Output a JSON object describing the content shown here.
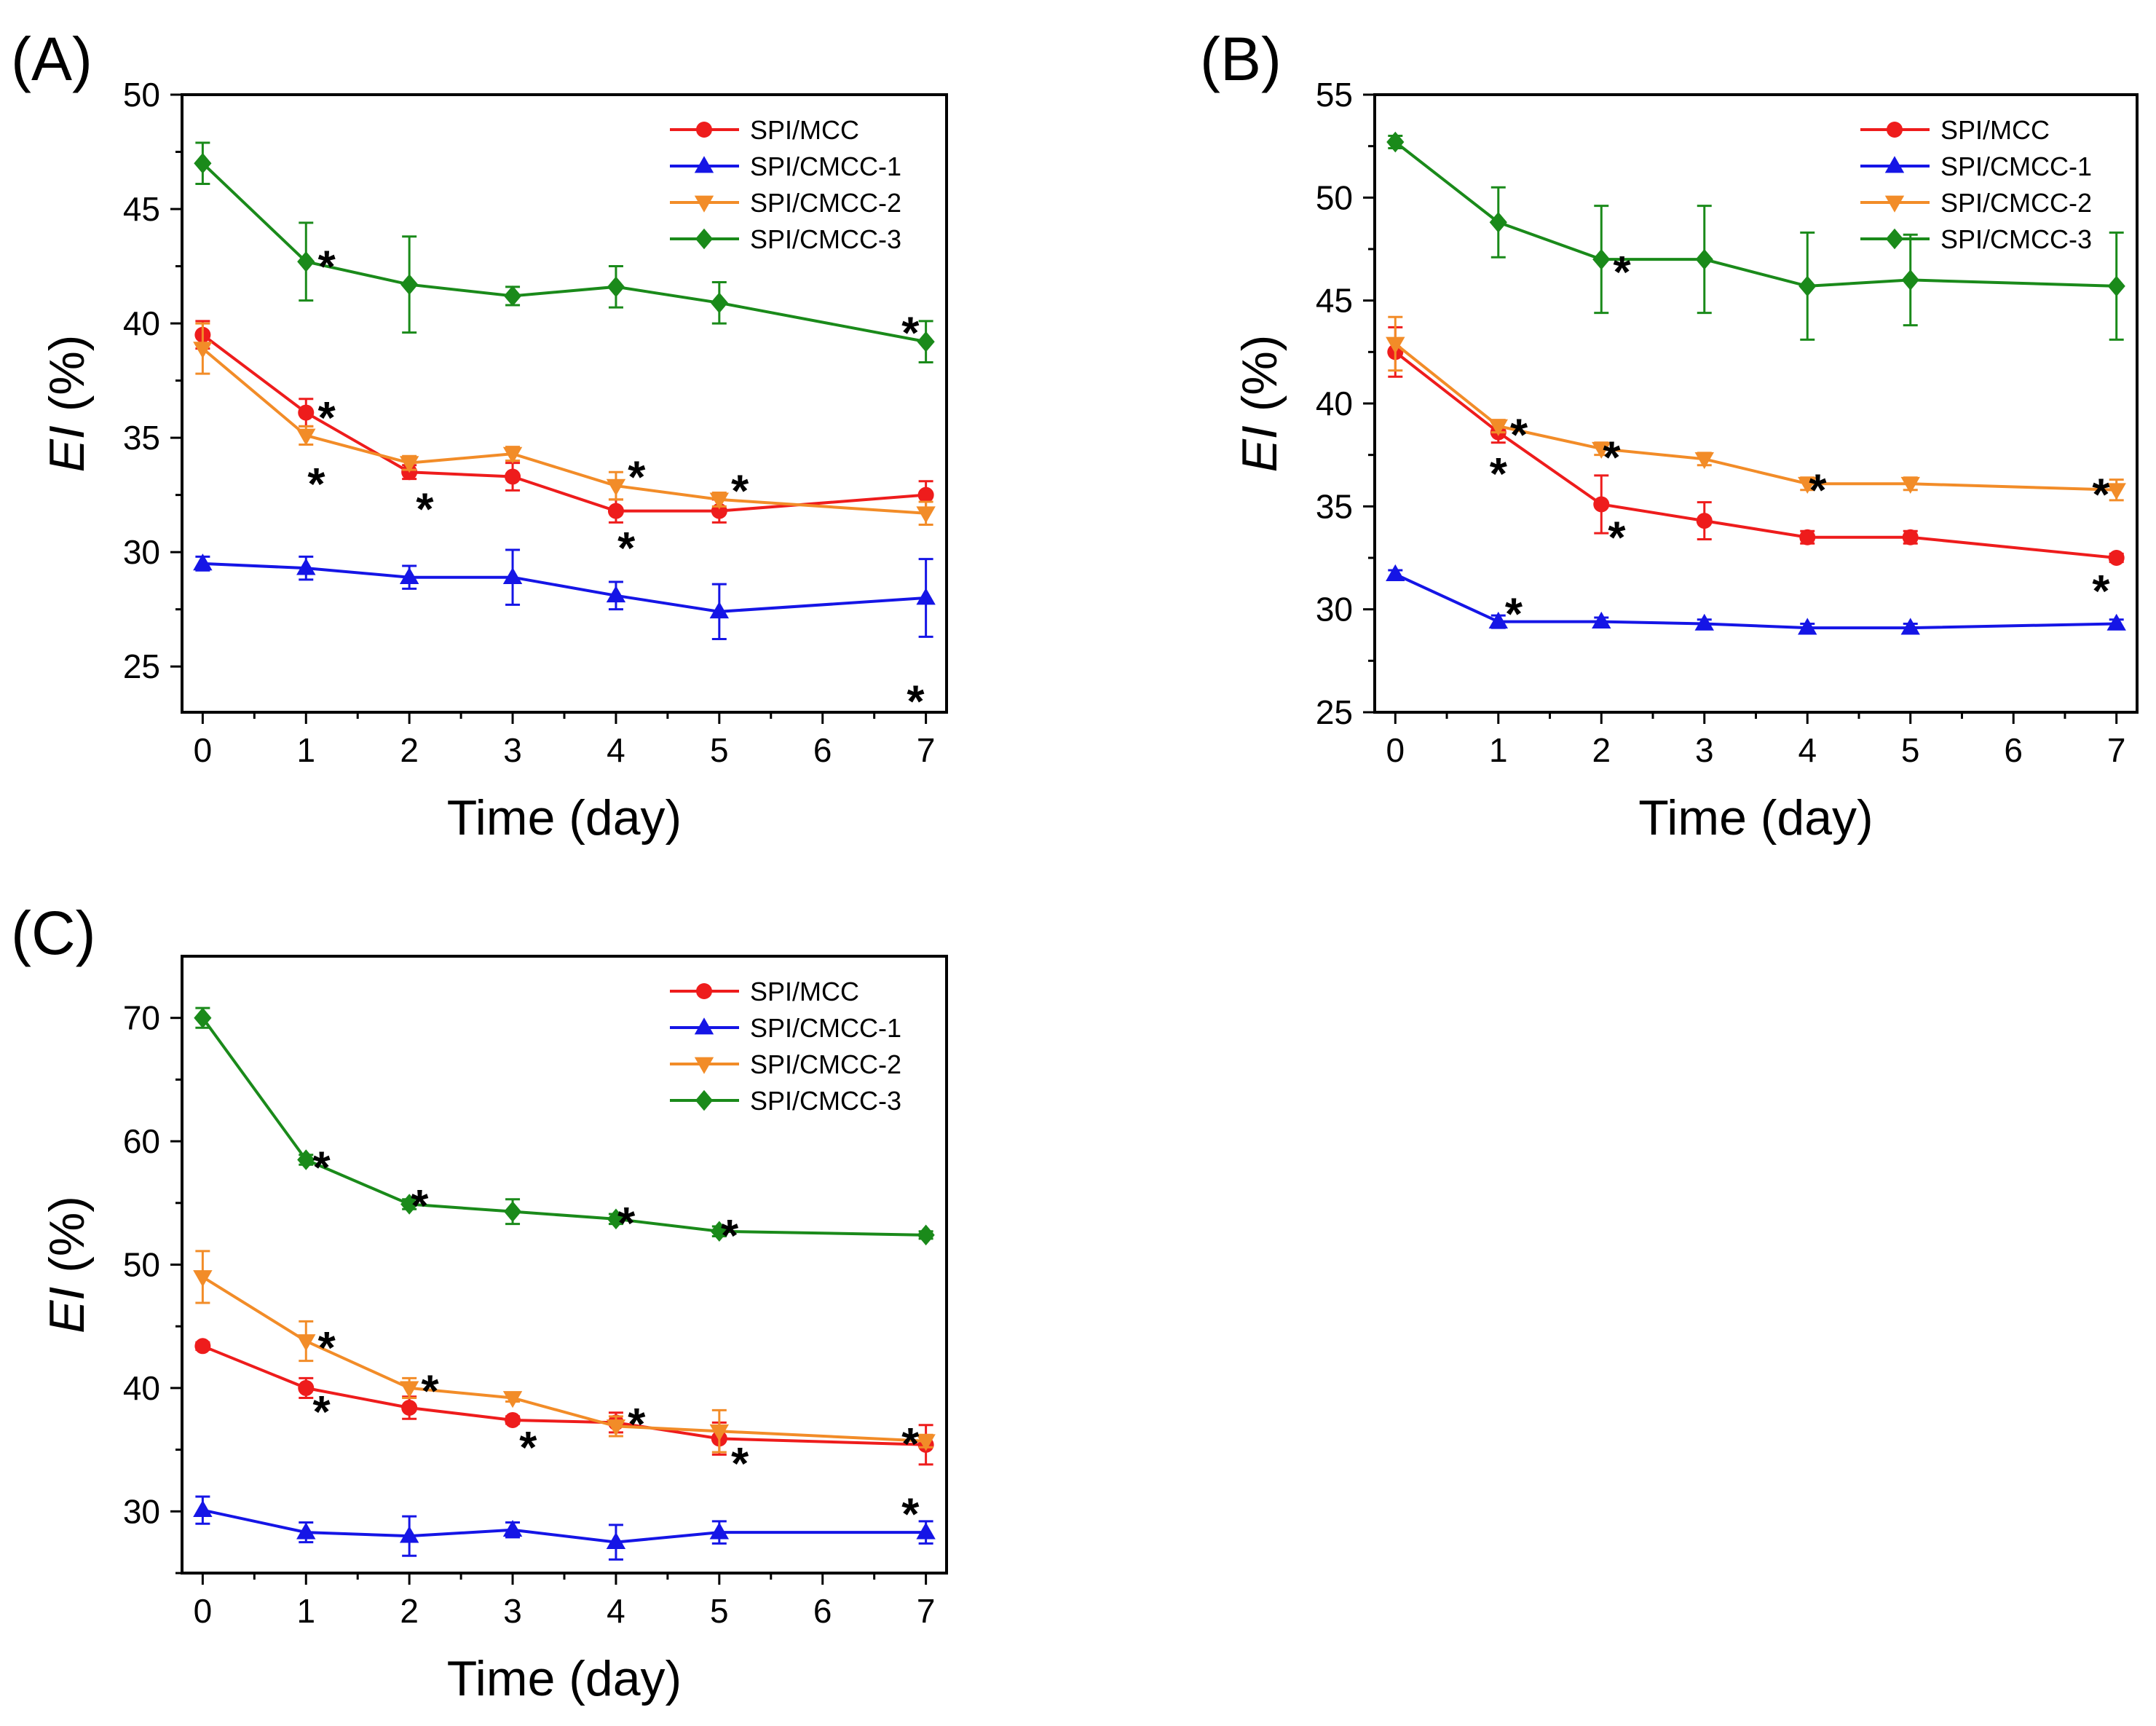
{
  "chart_data": [
    {
      "type": "line",
      "panel_label": "(A)",
      "xlabel": "Time (day)",
      "ylabel_italic": "EI",
      "ylabel_rest": " (%)",
      "xlim": [
        -0.2,
        7.2
      ],
      "ylim": [
        23,
        50
      ],
      "xticks": [
        0,
        1,
        2,
        3,
        4,
        5,
        6,
        7
      ],
      "yticks": [
        25,
        30,
        35,
        40,
        45,
        50
      ],
      "legend_position": "top-right",
      "series": [
        {
          "name": "SPI/MCC",
          "color": "#ee1c1c",
          "marker": "circle",
          "x": [
            0,
            1,
            2,
            3,
            4,
            5,
            7
          ],
          "y": [
            39.5,
            36.1,
            33.5,
            33.3,
            31.8,
            31.8,
            32.5
          ],
          "err": [
            0.6,
            0.6,
            0.3,
            0.6,
            0.5,
            0.5,
            0.6
          ]
        },
        {
          "name": "SPI/CMCC-1",
          "color": "#1515e6",
          "marker": "triangle-up",
          "x": [
            0,
            1,
            2,
            3,
            4,
            5,
            7
          ],
          "y": [
            29.5,
            29.3,
            28.9,
            28.9,
            28.1,
            27.4,
            28.0
          ],
          "err": [
            0.3,
            0.5,
            0.5,
            1.2,
            0.6,
            1.2,
            1.7
          ]
        },
        {
          "name": "SPI/CMCC-2",
          "color": "#f28c28",
          "marker": "triangle-down",
          "x": [
            0,
            1,
            2,
            3,
            4,
            5,
            7
          ],
          "y": [
            38.9,
            35.1,
            33.9,
            34.3,
            32.9,
            32.3,
            31.7
          ],
          "err": [
            1.1,
            0.4,
            0.3,
            0.3,
            0.6,
            0.3,
            0.5
          ]
        },
        {
          "name": "SPI/CMCC-3",
          "color": "#1a8a1a",
          "marker": "diamond",
          "x": [
            0,
            1,
            2,
            3,
            4,
            5,
            7
          ],
          "y": [
            47.0,
            42.7,
            41.7,
            41.2,
            41.6,
            40.9,
            39.2
          ],
          "err": [
            0.9,
            1.7,
            2.1,
            0.4,
            0.9,
            0.9,
            0.9
          ]
        }
      ],
      "annotations": [
        {
          "text": "*",
          "x": 1.2,
          "y": 42.5,
          "color": "#1a8a1a"
        },
        {
          "text": "*",
          "x": 6.85,
          "y": 39.6,
          "color": "#1a8a1a"
        },
        {
          "text": "*",
          "x": 1.2,
          "y": 35.9,
          "color": "#ee1c1c"
        },
        {
          "text": "*",
          "x": 2.15,
          "y": 31.9,
          "color": "#ee1c1c"
        },
        {
          "text": "*",
          "x": 4.1,
          "y": 30.2,
          "color": "#ee1c1c"
        },
        {
          "text": "*",
          "x": 1.1,
          "y": 33.0,
          "color": "#f28c28"
        },
        {
          "text": "*",
          "x": 4.2,
          "y": 33.3,
          "color": "#f28c28"
        },
        {
          "text": "*",
          "x": 5.2,
          "y": 32.7,
          "color": "#f28c28"
        },
        {
          "text": "*",
          "x": 6.9,
          "y": 23.5,
          "color": "#000000"
        }
      ]
    },
    {
      "type": "line",
      "panel_label": "(B)",
      "xlabel": "Time (day)",
      "ylabel_italic": "EI",
      "ylabel_rest": " (%)",
      "xlim": [
        -0.2,
        7.2
      ],
      "ylim": [
        25,
        55
      ],
      "xticks": [
        0,
        1,
        2,
        3,
        4,
        5,
        6,
        7
      ],
      "yticks": [
        25,
        30,
        35,
        40,
        45,
        50,
        55
      ],
      "legend_position": "top-right",
      "series": [
        {
          "name": "SPI/MCC",
          "color": "#ee1c1c",
          "marker": "circle",
          "x": [
            0,
            1,
            2,
            3,
            4,
            5,
            7
          ],
          "y": [
            42.5,
            38.6,
            35.1,
            34.3,
            33.5,
            33.5,
            32.5
          ],
          "err": [
            1.2,
            0.5,
            1.4,
            0.9,
            0.3,
            0.3,
            0.2
          ]
        },
        {
          "name": "SPI/CMCC-1",
          "color": "#1515e6",
          "marker": "triangle-up",
          "x": [
            0,
            1,
            2,
            3,
            4,
            5,
            7
          ],
          "y": [
            31.7,
            29.4,
            29.4,
            29.3,
            29.1,
            29.1,
            29.3
          ],
          "err": [
            0.2,
            0.3,
            0.2,
            0.2,
            0.2,
            0.2,
            0.2
          ]
        },
        {
          "name": "SPI/CMCC-2",
          "color": "#f28c28",
          "marker": "triangle-down",
          "x": [
            0,
            1,
            2,
            3,
            4,
            5,
            7
          ],
          "y": [
            42.9,
            38.9,
            37.8,
            37.3,
            36.1,
            36.1,
            35.8
          ],
          "err": [
            1.3,
            0.3,
            0.3,
            0.3,
            0.3,
            0.3,
            0.5
          ]
        },
        {
          "name": "SPI/CMCC-3",
          "color": "#1a8a1a",
          "marker": "diamond",
          "x": [
            0,
            1,
            2,
            3,
            4,
            5,
            7
          ],
          "y": [
            52.7,
            48.8,
            47.0,
            47.0,
            45.7,
            46.0,
            45.7
          ],
          "err": [
            0.3,
            1.7,
            2.6,
            2.6,
            2.6,
            2.2,
            2.6
          ]
        }
      ],
      "annotations": [
        {
          "text": "*",
          "x": 2.2,
          "y": 46.4,
          "color": "#1a8a1a"
        },
        {
          "text": "*",
          "x": 1.2,
          "y": 38.5,
          "color": "#f28c28"
        },
        {
          "text": "*",
          "x": 2.1,
          "y": 37.4,
          "color": "#f28c28"
        },
        {
          "text": "*",
          "x": 4.1,
          "y": 35.8,
          "color": "#f28c28"
        },
        {
          "text": "*",
          "x": 6.85,
          "y": 35.6,
          "color": "#f28c28"
        },
        {
          "text": "*",
          "x": 1.0,
          "y": 36.6,
          "color": "#ee1c1c"
        },
        {
          "text": "*",
          "x": 2.15,
          "y": 33.5,
          "color": "#ee1c1c"
        },
        {
          "text": "*",
          "x": 6.85,
          "y": 30.9,
          "color": "#ee1c1c"
        },
        {
          "text": "*",
          "x": 1.15,
          "y": 29.8,
          "color": "#1515e6"
        }
      ]
    },
    {
      "type": "line",
      "panel_label": "(C)",
      "xlabel": "Time (day)",
      "ylabel_italic": "EI",
      "ylabel_rest": " (%)",
      "xlim": [
        -0.2,
        7.2
      ],
      "ylim": [
        25,
        75
      ],
      "xticks": [
        0,
        1,
        2,
        3,
        4,
        5,
        6,
        7
      ],
      "yticks": [
        30,
        40,
        50,
        60,
        70
      ],
      "legend_position": "top-right",
      "series": [
        {
          "name": "SPI/MCC",
          "color": "#ee1c1c",
          "marker": "circle",
          "x": [
            0,
            1,
            2,
            3,
            4,
            5,
            7
          ],
          "y": [
            43.4,
            40.0,
            38.4,
            37.4,
            37.2,
            35.9,
            35.4
          ],
          "err": [
            0.3,
            0.8,
            0.9,
            0.3,
            0.8,
            1.3,
            1.6
          ]
        },
        {
          "name": "SPI/CMCC-1",
          "color": "#1515e6",
          "marker": "triangle-up",
          "x": [
            0,
            1,
            2,
            3,
            4,
            5,
            7
          ],
          "y": [
            30.1,
            28.3,
            28.0,
            28.5,
            27.5,
            28.3,
            28.3
          ],
          "err": [
            1.1,
            0.8,
            1.6,
            0.6,
            1.4,
            0.9,
            0.9
          ]
        },
        {
          "name": "SPI/CMCC-2",
          "color": "#f28c28",
          "marker": "triangle-down",
          "x": [
            0,
            1,
            2,
            3,
            4,
            5,
            7
          ],
          "y": [
            49.0,
            43.8,
            40.0,
            39.2,
            36.9,
            36.5,
            35.7
          ],
          "err": [
            2.1,
            1.6,
            0.8,
            0.3,
            0.8,
            1.7,
            0.5
          ]
        },
        {
          "name": "SPI/CMCC-3",
          "color": "#1a8a1a",
          "marker": "diamond",
          "x": [
            0,
            1,
            2,
            3,
            4,
            5,
            7
          ],
          "y": [
            70.0,
            58.5,
            54.9,
            54.3,
            53.7,
            52.7,
            52.4
          ],
          "err": [
            0.8,
            0.4,
            0.4,
            1.0,
            0.4,
            0.4,
            0.3
          ]
        }
      ],
      "annotations": [
        {
          "text": "*",
          "x": 1.15,
          "y": 57.9,
          "color": "#1a8a1a"
        },
        {
          "text": "*",
          "x": 2.1,
          "y": 54.8,
          "color": "#1a8a1a"
        },
        {
          "text": "*",
          "x": 4.1,
          "y": 53.4,
          "color": "#1a8a1a"
        },
        {
          "text": "*",
          "x": 5.1,
          "y": 52.4,
          "color": "#1a8a1a"
        },
        {
          "text": "*",
          "x": 1.2,
          "y": 43.3,
          "color": "#f28c28"
        },
        {
          "text": "*",
          "x": 2.2,
          "y": 39.8,
          "color": "#f28c28"
        },
        {
          "text": "*",
          "x": 4.2,
          "y": 37.1,
          "color": "#f28c28"
        },
        {
          "text": "*",
          "x": 6.85,
          "y": 35.5,
          "color": "#f28c28"
        },
        {
          "text": "*",
          "x": 1.15,
          "y": 38.1,
          "color": "#ee1c1c"
        },
        {
          "text": "*",
          "x": 3.15,
          "y": 35.2,
          "color": "#ee1c1c"
        },
        {
          "text": "*",
          "x": 5.2,
          "y": 33.9,
          "color": "#ee1c1c"
        },
        {
          "text": "*",
          "x": 6.85,
          "y": 29.8,
          "color": "#000000"
        }
      ]
    }
  ]
}
